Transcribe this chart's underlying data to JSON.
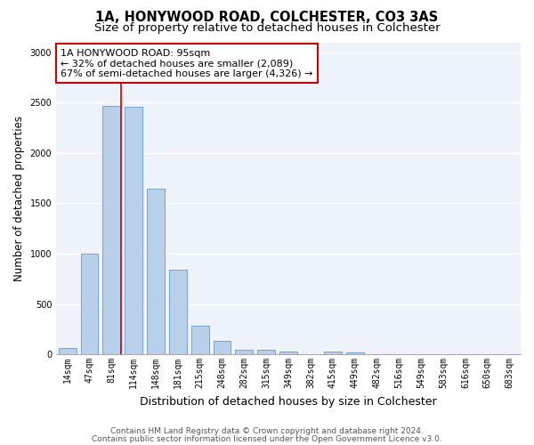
{
  "title1": "1A, HONYWOOD ROAD, COLCHESTER, CO3 3AS",
  "title2": "Size of property relative to detached houses in Colchester",
  "xlabel": "Distribution of detached houses by size in Colchester",
  "ylabel": "Number of detached properties",
  "footnote1": "Contains HM Land Registry data © Crown copyright and database right 2024.",
  "footnote2": "Contains public sector information licensed under the Open Government Licence v3.0.",
  "annotation_line1": "1A HONYWOOD ROAD: 95sqm",
  "annotation_line2": "← 32% of detached houses are smaller (2,089)",
  "annotation_line3": "67% of semi-detached houses are larger (4,326) →",
  "bar_labels": [
    "14sqm",
    "47sqm",
    "81sqm",
    "114sqm",
    "148sqm",
    "181sqm",
    "215sqm",
    "248sqm",
    "282sqm",
    "315sqm",
    "349sqm",
    "382sqm",
    "415sqm",
    "449sqm",
    "482sqm",
    "516sqm",
    "549sqm",
    "583sqm",
    "616sqm",
    "650sqm",
    "683sqm"
  ],
  "bar_values": [
    60,
    1000,
    2470,
    2460,
    1650,
    840,
    285,
    135,
    45,
    45,
    25,
    5,
    25,
    15,
    0,
    0,
    0,
    0,
    0,
    0,
    0
  ],
  "bar_color": "#b8d0ea",
  "bar_edge_color": "#6699cc",
  "bar_edge_width": 0.6,
  "vline_color": "#cc0000",
  "vline_x_index": 2.45,
  "annotation_box_color": "#ffffff",
  "annotation_box_edge_color": "#cc0000",
  "ylim": [
    0,
    3100
  ],
  "yticks": [
    0,
    500,
    1000,
    1500,
    2000,
    2500,
    3000
  ],
  "background_color": "#eef2fb",
  "grid_color": "#ffffff",
  "title_fontsize": 10.5,
  "subtitle_fontsize": 9.5,
  "xlabel_fontsize": 9,
  "ylabel_fontsize": 8.5,
  "tick_fontsize": 7,
  "annotation_fontsize": 8,
  "footnote_fontsize": 6.5
}
